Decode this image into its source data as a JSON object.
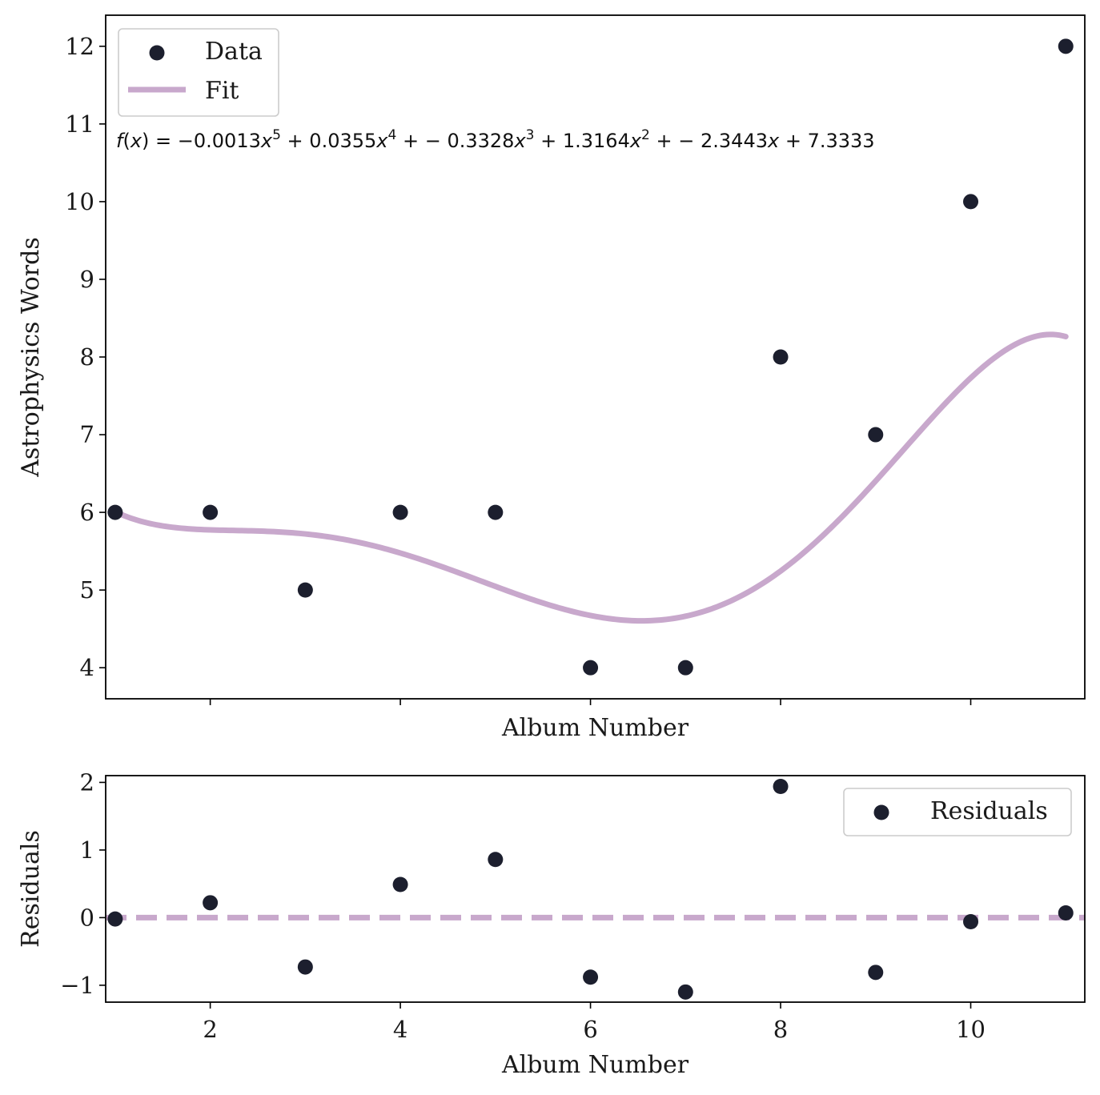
{
  "colors": {
    "point": "#1c1f2e",
    "fit": "#c8a8cc",
    "axis": "#000000",
    "legend_border": "#cccccc"
  },
  "chart_data": [
    {
      "type": "scatter",
      "panel": "main",
      "xlabel": "Album Number",
      "ylabel": "Astrophysics Words",
      "xlim": [
        0.9,
        11.2
      ],
      "ylim": [
        3.6,
        12.4
      ],
      "y_ticks": [
        "4",
        "5",
        "6",
        "7",
        "8",
        "9",
        "10",
        "11",
        "12"
      ],
      "x_ticks": [
        2,
        4,
        6,
        8,
        10
      ],
      "x_tick_labels_visible": false,
      "series": [
        {
          "name": "Data",
          "kind": "scatter",
          "x": [
            1,
            2,
            3,
            4,
            5,
            6,
            7,
            8,
            9,
            10,
            11
          ],
          "y": [
            6,
            6,
            5,
            6,
            6,
            4,
            4,
            8,
            7,
            10,
            12
          ]
        },
        {
          "name": "Fit",
          "kind": "line",
          "coefficients": [
            -0.0013,
            0.0355,
            -0.3328,
            1.3164,
            -2.3443,
            7.3333
          ],
          "x_range": [
            1,
            11
          ]
        }
      ],
      "legend": {
        "position": "top-left",
        "entries": [
          "Data",
          "Fit"
        ]
      },
      "annotation": {
        "f": "f",
        "x": "x",
        "eq": "=",
        "terms": [
          {
            "coef": "−0.0013",
            "var": "x",
            "pow": "5",
            "op": "+"
          },
          {
            "coef": "0.0355",
            "var": "x",
            "pow": "4",
            "op": "+ −"
          },
          {
            "coef": "0.3328",
            "var": "x",
            "pow": "3",
            "op": "+"
          },
          {
            "coef": "1.3164",
            "var": "x",
            "pow": "2",
            "op": "+ −"
          },
          {
            "coef": "2.3443",
            "var": "x",
            "pow": "",
            "op": "+"
          },
          {
            "coef": "7.3333",
            "var": "",
            "pow": "",
            "op": ""
          }
        ]
      }
    },
    {
      "type": "scatter",
      "panel": "residuals",
      "xlabel": "Album Number",
      "ylabel": "Residuals",
      "xlim": [
        0.9,
        11.2
      ],
      "ylim": [
        -1.25,
        2.1
      ],
      "y_ticks": [
        "−1",
        "0",
        "1",
        "2"
      ],
      "x_ticks": [
        "2",
        "4",
        "6",
        "8",
        "10"
      ],
      "series": [
        {
          "name": "Residuals",
          "kind": "scatter",
          "x": [
            1,
            2,
            3,
            4,
            5,
            6,
            7,
            8,
            9,
            10,
            11
          ],
          "y": [
            -0.02,
            0.22,
            -0.73,
            0.49,
            0.86,
            -0.88,
            -1.1,
            1.94,
            -0.81,
            -0.06,
            0.07
          ]
        }
      ],
      "reference_line": {
        "y": 0,
        "style": "dashed"
      },
      "legend": {
        "position": "top-right",
        "entries": [
          "Residuals"
        ]
      }
    }
  ]
}
